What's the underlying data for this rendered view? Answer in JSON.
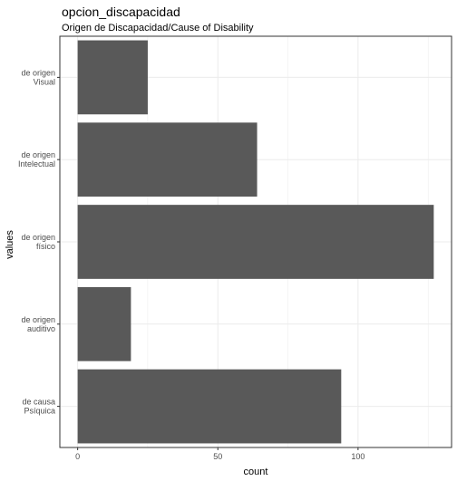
{
  "chart_data": {
    "type": "bar",
    "orientation": "horizontal",
    "title": "opcion_discapacidad",
    "subtitle": "Origen de Discapacidad/Cause of Disability",
    "xlabel": "count",
    "ylabel": "values",
    "categories": [
      [
        "de causa",
        "Psíquica"
      ],
      [
        "de origen",
        "auditivo"
      ],
      [
        "de origen",
        "físico"
      ],
      [
        "de origen",
        "Intelectual"
      ],
      [
        "de origen",
        "Visual"
      ]
    ],
    "values": [
      94,
      19,
      127,
      64,
      25
    ],
    "xlim": [
      -6.35,
      133.35
    ],
    "xticks": [
      0,
      50,
      100
    ],
    "grid": true,
    "bar_color": "#595959",
    "grid_color": "#ebebeb",
    "panel_border_color": "#333333"
  }
}
